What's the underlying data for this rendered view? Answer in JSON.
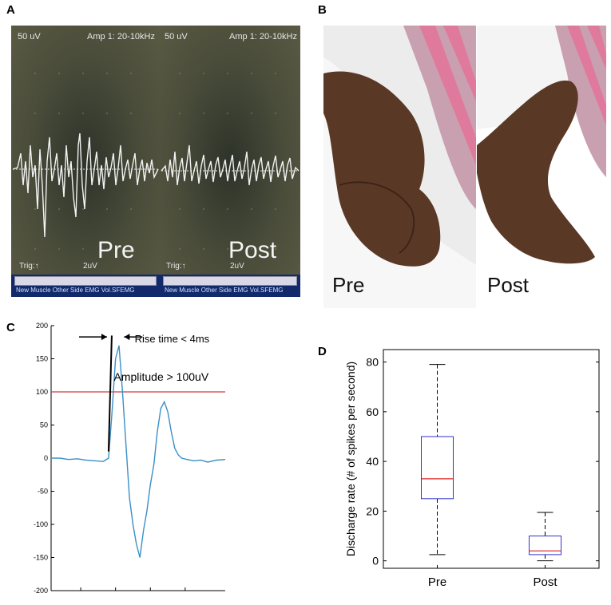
{
  "panels": {
    "a_letter": "A",
    "b_letter": "B",
    "c_letter": "C",
    "d_letter": "D"
  },
  "panel_a": {
    "scale_label": "50 uV",
    "amp_label": "Amp 1: 20-10kHz",
    "trig_label": "Trig:↑",
    "gain_label": "2uV",
    "menu_items": "New Muscle  Other Side  EMG  Vol.SFEMG",
    "pre_label": "Pre",
    "post_label": "Post"
  },
  "panel_b": {
    "pre_label": "Pre",
    "post_label": "Post"
  },
  "panel_c": {
    "rise_label": "Rise time < 4ms",
    "amp_label": "Amplitude > 100uV"
  },
  "chart_data": [
    {
      "type": "line",
      "panel": "C",
      "ylim": [
        -200,
        200
      ],
      "yticks": [
        -200,
        -150,
        -100,
        -50,
        0,
        50,
        100,
        150,
        200
      ],
      "threshold": 100,
      "annotations": [
        "Rise time < 4ms",
        "Amplitude > 100uV"
      ],
      "series": [
        {
          "x": [
            0,
            5,
            10,
            15,
            20,
            25,
            30,
            33,
            35,
            37,
            39,
            41,
            43,
            45,
            47,
            49,
            51,
            53,
            55,
            57,
            59,
            61,
            63,
            65,
            67,
            69,
            71,
            73,
            75,
            78,
            82,
            86,
            90,
            95,
            100
          ],
          "y": [
            0,
            0,
            -2,
            -1,
            -3,
            -4,
            -5,
            0,
            70,
            150,
            170,
            100,
            20,
            -60,
            -100,
            -130,
            -150,
            -110,
            -80,
            -40,
            -10,
            40,
            75,
            85,
            70,
            40,
            15,
            5,
            0,
            -2,
            -4,
            -3,
            -6,
            -3,
            -2
          ]
        }
      ]
    },
    {
      "type": "box",
      "panel": "D",
      "ylabel": "Discharge rate (# of spikes per second)",
      "ylim": [
        -3,
        85
      ],
      "yticks": [
        0,
        20,
        40,
        60,
        80
      ],
      "categories": [
        "Pre",
        "Post"
      ],
      "boxes": [
        {
          "min": 2.5,
          "q1": 25,
          "median": 33,
          "q3": 50,
          "max": 79
        },
        {
          "min": 0,
          "q1": 2.5,
          "median": 4,
          "q3": 10,
          "max": 19.5
        }
      ],
      "colors": {
        "box": "#3333cc",
        "median": "#dd2222",
        "whisker": "#000000"
      }
    }
  ]
}
